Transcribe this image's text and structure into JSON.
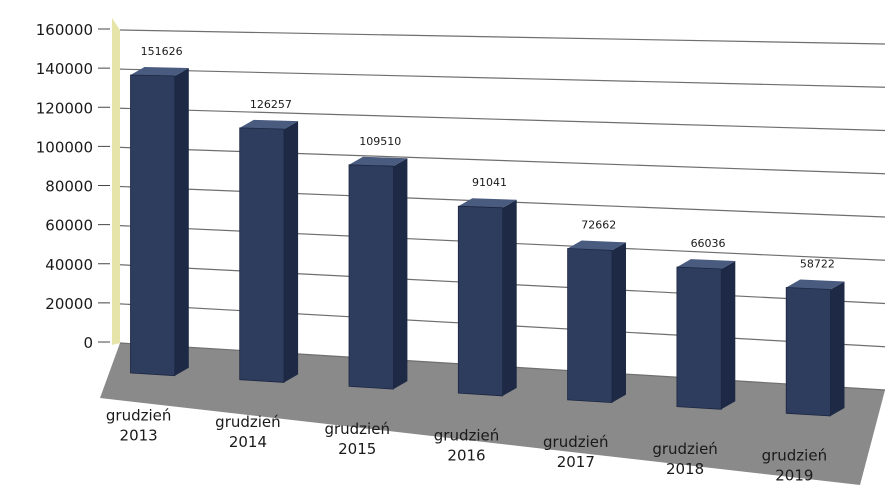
{
  "chart_data": {
    "type": "bar",
    "categories": [
      [
        "grudzień",
        "2013"
      ],
      [
        "grudzień",
        "2014"
      ],
      [
        "grudzień",
        "2015"
      ],
      [
        "grudzień",
        "2016"
      ],
      [
        "grudzień",
        "2017"
      ],
      [
        "grudzień",
        "2018"
      ],
      [
        "grudzień",
        "2019"
      ]
    ],
    "values": [
      151626,
      126257,
      109510,
      91041,
      72662,
      66036,
      58722
    ],
    "value_labels": [
      "151626",
      "126257",
      "109510",
      "91041",
      "72662",
      "66036",
      "58722"
    ],
    "yticks": [
      "0",
      "20000",
      "40000",
      "60000",
      "80000",
      "100000",
      "120000",
      "140000",
      "160000"
    ],
    "ylim": [
      0,
      160000
    ],
    "title": "",
    "xlabel": "",
    "ylabel": "",
    "grid": true,
    "legend": "none",
    "style": "3d-perspective",
    "colors": {
      "bar_front": "#2e3d5e",
      "bar_side": "#1e2a45",
      "bar_top": "#4a5b80",
      "back_wall": "#ffffff",
      "side_wall": "#e6e4a8",
      "floor": "#8a8a8a",
      "gridline": "#6f6f6f",
      "text": "#1a1a1a"
    }
  }
}
